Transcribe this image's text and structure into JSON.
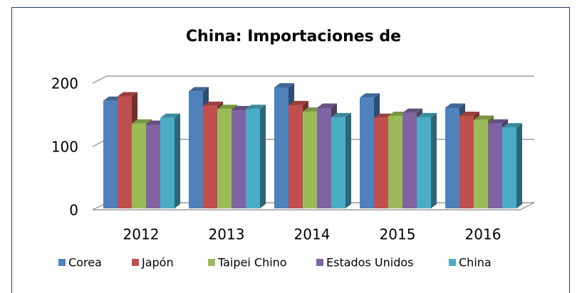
{
  "chart_data": {
    "type": "bar3d",
    "title": "China: Importaciones de",
    "categories": [
      "2012",
      "2013",
      "2014",
      "2015",
      "2016"
    ],
    "series": [
      {
        "name": "Corea",
        "color": "#4f81bd",
        "values": [
          170,
          185,
          191,
          175,
          159
        ]
      },
      {
        "name": "Japón",
        "color": "#c0504d",
        "values": [
          177,
          162,
          163,
          143,
          146
        ]
      },
      {
        "name": "Taipei Chino",
        "color": "#9bbb59",
        "values": [
          134,
          157,
          153,
          146,
          140
        ]
      },
      {
        "name": "Estados Unidos",
        "color": "#8064a2",
        "values": [
          132,
          155,
          159,
          151,
          134
        ]
      },
      {
        "name": "China",
        "color": "#4bacc6",
        "values": [
          143,
          157,
          144,
          144,
          128
        ]
      }
    ],
    "ylim": [
      0,
      200
    ],
    "yticks": [
      0,
      100,
      200
    ],
    "grid": true,
    "legend": "bottom"
  }
}
